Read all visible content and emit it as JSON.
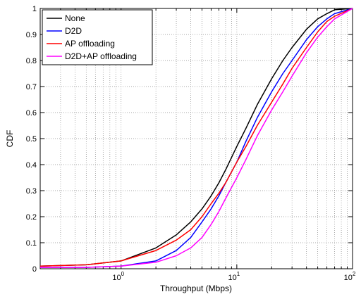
{
  "chart_data": {
    "type": "line",
    "xlabel": "Throughput (Mbps)",
    "ylabel": "CDF",
    "xscale": "log",
    "xlim": [
      0.2,
      100
    ],
    "ylim": [
      0,
      1
    ],
    "grid": true,
    "legend_position": "top-left",
    "x_ticks": [
      {
        "value": 1,
        "base": "10",
        "exp": "0"
      },
      {
        "value": 10,
        "base": "10",
        "exp": "1"
      },
      {
        "value": 100,
        "base": "10",
        "exp": "2"
      }
    ],
    "y_ticks": [
      "0",
      "0.1",
      "0.2",
      "0.3",
      "0.4",
      "0.5",
      "0.6",
      "0.7",
      "0.8",
      "0.9",
      "1"
    ],
    "series": [
      {
        "name": "None",
        "color": "#000000",
        "x": [
          0.2,
          0.5,
          1,
          2,
          3,
          4,
          5,
          6,
          7,
          8,
          10,
          12,
          15,
          20,
          25,
          30,
          40,
          50,
          60,
          70,
          100
        ],
        "y": [
          0.01,
          0.015,
          0.03,
          0.08,
          0.13,
          0.18,
          0.23,
          0.28,
          0.33,
          0.38,
          0.47,
          0.54,
          0.63,
          0.73,
          0.8,
          0.85,
          0.92,
          0.96,
          0.98,
          0.995,
          1.0
        ]
      },
      {
        "name": "D2D",
        "color": "#0000ff",
        "x": [
          0.2,
          0.5,
          1,
          2,
          3,
          4,
          5,
          6,
          7,
          8,
          10,
          12,
          15,
          20,
          25,
          30,
          40,
          50,
          60,
          70,
          100
        ],
        "y": [
          0.005,
          0.005,
          0.01,
          0.03,
          0.07,
          0.12,
          0.18,
          0.23,
          0.28,
          0.33,
          0.41,
          0.49,
          0.58,
          0.68,
          0.75,
          0.8,
          0.88,
          0.93,
          0.96,
          0.98,
          1.0
        ]
      },
      {
        "name": "AP offloading",
        "color": "#ff0000",
        "x": [
          0.2,
          0.5,
          1,
          2,
          3,
          4,
          5,
          6,
          7,
          8,
          10,
          12,
          15,
          20,
          25,
          30,
          40,
          50,
          60,
          70,
          100
        ],
        "y": [
          0.01,
          0.015,
          0.03,
          0.07,
          0.11,
          0.15,
          0.2,
          0.25,
          0.29,
          0.33,
          0.41,
          0.47,
          0.55,
          0.64,
          0.71,
          0.77,
          0.85,
          0.91,
          0.95,
          0.97,
          1.0
        ]
      },
      {
        "name": "D2D+AP offloading",
        "color": "#ff00ff",
        "x": [
          0.2,
          0.5,
          1,
          2,
          3,
          4,
          5,
          6,
          7,
          8,
          10,
          12,
          15,
          20,
          25,
          30,
          40,
          50,
          60,
          70,
          100
        ],
        "y": [
          0.005,
          0.005,
          0.01,
          0.025,
          0.05,
          0.08,
          0.12,
          0.17,
          0.22,
          0.27,
          0.35,
          0.42,
          0.51,
          0.61,
          0.68,
          0.74,
          0.83,
          0.89,
          0.93,
          0.96,
          1.0
        ]
      }
    ]
  }
}
